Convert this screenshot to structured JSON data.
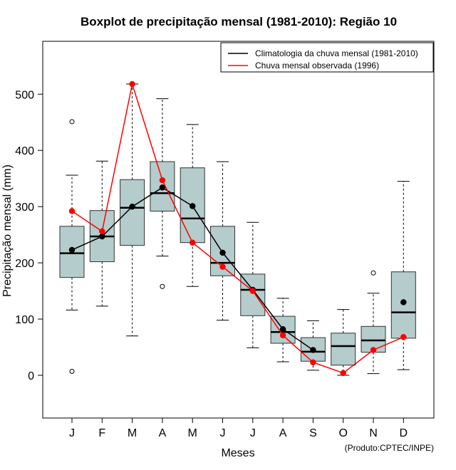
{
  "chart_data": {
    "type": "boxplot",
    "title": "Boxplot de precipitação mensal (1981-2010): Região 10",
    "xlabel": "Meses",
    "ylabel": "Precipitação mensal (mm)",
    "ylim": [
      -75,
      590
    ],
    "yticks": [
      0,
      100,
      200,
      300,
      400,
      500
    ],
    "categories": [
      "J",
      "F",
      "M",
      "A",
      "M",
      "J",
      "J",
      "A",
      "S",
      "O",
      "N",
      "D"
    ],
    "boxes": [
      {
        "whisker_low": 116,
        "q1": 174,
        "median": 217,
        "q3": 265,
        "whisker_high": 356,
        "outliers": [
          451,
          7
        ]
      },
      {
        "whisker_low": 123,
        "q1": 202,
        "median": 247,
        "q3": 293,
        "whisker_high": 381,
        "outliers": []
      },
      {
        "whisker_low": 70,
        "q1": 231,
        "median": 298,
        "q3": 348,
        "whisker_high": 518,
        "outliers": []
      },
      {
        "whisker_low": 212,
        "q1": 292,
        "median": 324,
        "q3": 380,
        "whisker_high": 492,
        "outliers": [
          158
        ]
      },
      {
        "whisker_low": 158,
        "q1": 236,
        "median": 279,
        "q3": 369,
        "whisker_high": 446,
        "outliers": []
      },
      {
        "whisker_low": 98,
        "q1": 177,
        "median": 200,
        "q3": 265,
        "whisker_high": 380,
        "outliers": []
      },
      {
        "whisker_low": 49,
        "q1": 106,
        "median": 152,
        "q3": 180,
        "whisker_high": 272,
        "outliers": []
      },
      {
        "whisker_low": 24,
        "q1": 57,
        "median": 77,
        "q3": 105,
        "whisker_high": 137,
        "outliers": []
      },
      {
        "whisker_low": 9,
        "q1": 25,
        "median": 42,
        "q3": 67,
        "whisker_high": 97,
        "outliers": []
      },
      {
        "whisker_low": 0,
        "q1": 18,
        "median": 52,
        "q3": 75,
        "whisker_high": 117,
        "outliers": []
      },
      {
        "whisker_low": 3,
        "q1": 41,
        "median": 62,
        "q3": 87,
        "whisker_high": 146,
        "outliers": [
          182
        ]
      },
      {
        "whisker_low": 10,
        "q1": 66,
        "median": 112,
        "q3": 184,
        "whisker_high": 345,
        "outliers": []
      }
    ],
    "series": [
      {
        "name": "Climatologia da chuva mensal (1981-2010)",
        "color": "#000000",
        "values": [
          223,
          247,
          300,
          334,
          301,
          218,
          152,
          82,
          45,
          null,
          null,
          130
        ]
      },
      {
        "name": "Chuva mensal observada (1996)",
        "color": "#ff0000",
        "values": [
          292,
          256,
          518,
          347,
          236,
          193,
          150,
          71,
          23,
          4,
          45,
          68
        ]
      }
    ],
    "legend_position": "top-right",
    "box_fill": "#b4cccc",
    "credit": "(Produto:CPTEC/INPE)"
  }
}
